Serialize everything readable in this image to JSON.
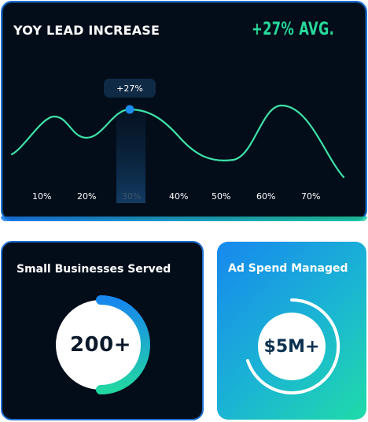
{
  "yoy": {
    "title": "YOY LEAD INCREASE",
    "avg": "+27% AVG.",
    "tooltip": "+27%",
    "x_ticks": [
      "10%",
      "20%",
      "30%",
      "40%",
      "50%",
      "60%",
      "70%"
    ]
  },
  "small_business": {
    "title": "Small Businesses Served",
    "value": "200+"
  },
  "ad_spend": {
    "title": "Ad Spend Managed",
    "value": "$5M+"
  },
  "colors": {
    "card_dark": "#030d1a",
    "accent_green": "#27d99a",
    "accent_blue": "#1877e8",
    "line": "#3ee2a8",
    "dot": "#1c8cf0"
  }
}
